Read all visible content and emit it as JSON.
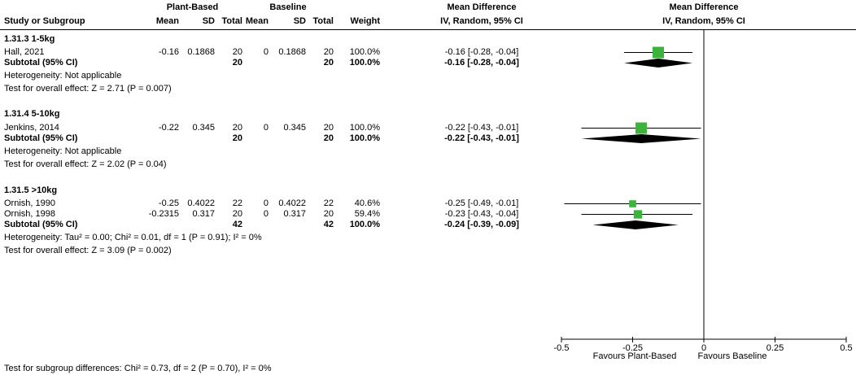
{
  "header": {
    "study_col": "Study or Subgroup",
    "group1": "Plant-Based",
    "group2": "Baseline",
    "mean": "Mean",
    "sd": "SD",
    "total": "Total",
    "weight": "Weight",
    "md_text_title": "Mean Difference",
    "md_text_sub": "IV, Random, 95% CI",
    "md_plot_title": "Mean Difference",
    "md_plot_sub": "IV, Random, 95% CI"
  },
  "sections": [
    {
      "title": "1.31.3 1-5kg",
      "studies": [
        {
          "name": "Hall, 2021",
          "mean1": "-0.16",
          "sd1": "0.1868",
          "total1": "20",
          "mean2": "0",
          "sd2": "0.1868",
          "total2": "20",
          "weight": "100.0%",
          "ci": "-0.16 [-0.28, -0.04]"
        }
      ],
      "subtotal": {
        "label": "Subtotal (95% CI)",
        "total1": "20",
        "total2": "20",
        "weight": "100.0%",
        "ci": "-0.16 [-0.28, -0.04]"
      },
      "heterogeneity": "Heterogeneity: Not applicable",
      "overall_test": "Test for overall effect: Z = 2.71 (P = 0.007)"
    },
    {
      "title": "1.31.4 5-10kg",
      "studies": [
        {
          "name": "Jenkins, 2014",
          "mean1": "-0.22",
          "sd1": "0.345",
          "total1": "20",
          "mean2": "0",
          "sd2": "0.345",
          "total2": "20",
          "weight": "100.0%",
          "ci": "-0.22 [-0.43, -0.01]"
        }
      ],
      "subtotal": {
        "label": "Subtotal (95% CI)",
        "total1": "20",
        "total2": "20",
        "weight": "100.0%",
        "ci": "-0.22 [-0.43, -0.01]"
      },
      "heterogeneity": "Heterogeneity: Not applicable",
      "overall_test": "Test for overall effect: Z = 2.02 (P = 0.04)"
    },
    {
      "title": "1.31.5 >10kg",
      "studies": [
        {
          "name": "Ornish, 1990",
          "mean1": "-0.25",
          "sd1": "0.4022",
          "total1": "22",
          "mean2": "0",
          "sd2": "0.4022",
          "total2": "22",
          "weight": "40.6%",
          "ci": "-0.25 [-0.49, -0.01]"
        },
        {
          "name": "Ornish, 1998",
          "mean1": "-0.2315",
          "sd1": "0.317",
          "total1": "20",
          "mean2": "0",
          "sd2": "0.317",
          "total2": "20",
          "weight": "59.4%",
          "ci": "-0.23 [-0.43, -0.04]"
        }
      ],
      "subtotal": {
        "label": "Subtotal (95% CI)",
        "total1": "42",
        "total2": "42",
        "weight": "100.0%",
        "ci": "-0.24 [-0.39, -0.09]"
      },
      "heterogeneity": "Heterogeneity: Tau² = 0.00; Chi² = 0.01, df = 1 (P = 0.91); I² = 0%",
      "overall_test": "Test for overall effect: Z = 3.09 (P = 0.002)"
    }
  ],
  "footer": "Test for subgroup differences: Chi² = 0.73, df = 2 (P = 0.70), I² = 0%",
  "axis": {
    "tick_labels": [
      "-0.5",
      "-0.25",
      "0",
      "0.25",
      "0.5"
    ],
    "left_label": "Favours Plant-Based",
    "right_label": "Favours Baseline"
  },
  "colors": {
    "marker": "#3cb33c",
    "diamond": "#000000",
    "line": "#000000"
  },
  "chart_data": {
    "type": "scatter",
    "title": "Forest plot — Mean Difference, IV, Random, 95% CI",
    "xlim": [
      -0.5,
      0.5
    ],
    "xticks": [
      -0.5,
      -0.25,
      0,
      0.25,
      0.5
    ],
    "x_axis_annotation_left": "Favours Plant-Based",
    "x_axis_annotation_right": "Favours Baseline",
    "points": [
      {
        "label": "Hall, 2021",
        "marker": "square",
        "est": -0.16,
        "lo": -0.28,
        "hi": -0.04,
        "weight_pct": 100.0
      },
      {
        "label": "Subtotal 1.31.3 1-5kg",
        "marker": "diamond",
        "est": -0.16,
        "lo": -0.28,
        "hi": -0.04
      },
      {
        "label": "Jenkins, 2014",
        "marker": "square",
        "est": -0.22,
        "lo": -0.43,
        "hi": -0.01,
        "weight_pct": 100.0
      },
      {
        "label": "Subtotal 1.31.4 5-10kg",
        "marker": "diamond",
        "est": -0.22,
        "lo": -0.43,
        "hi": -0.01
      },
      {
        "label": "Ornish, 1990",
        "marker": "square",
        "est": -0.25,
        "lo": -0.49,
        "hi": -0.01,
        "weight_pct": 40.6
      },
      {
        "label": "Ornish, 1998",
        "marker": "square",
        "est": -0.2315,
        "lo": -0.43,
        "hi": -0.04,
        "weight_pct": 59.4
      },
      {
        "label": "Subtotal 1.31.5 >10kg",
        "marker": "diamond",
        "est": -0.24,
        "lo": -0.39,
        "hi": -0.09
      }
    ]
  }
}
